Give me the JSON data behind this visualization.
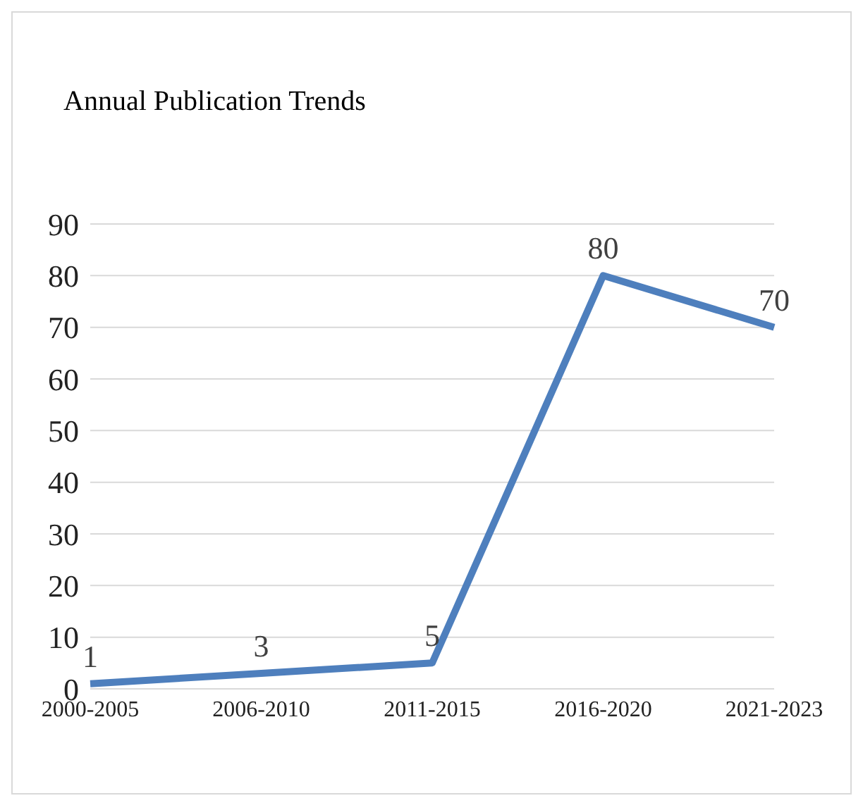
{
  "chart_data": {
    "type": "line",
    "title": "Annual Publication Trends",
    "categories": [
      "2000-2005",
      "2006-2010",
      "2011-2015",
      "2016-2020",
      "2021-2023"
    ],
    "series": [
      {
        "color": "#4e7fbd",
        "values": [
          1,
          3,
          5,
          80,
          70
        ]
      }
    ],
    "ylim": [
      0,
      90
    ],
    "yticks": [
      0,
      10,
      20,
      30,
      40,
      50,
      60,
      70,
      80,
      90
    ],
    "grid": "y",
    "data_labels": true,
    "legend": false,
    "marker": "none",
    "line_style": "solid"
  }
}
